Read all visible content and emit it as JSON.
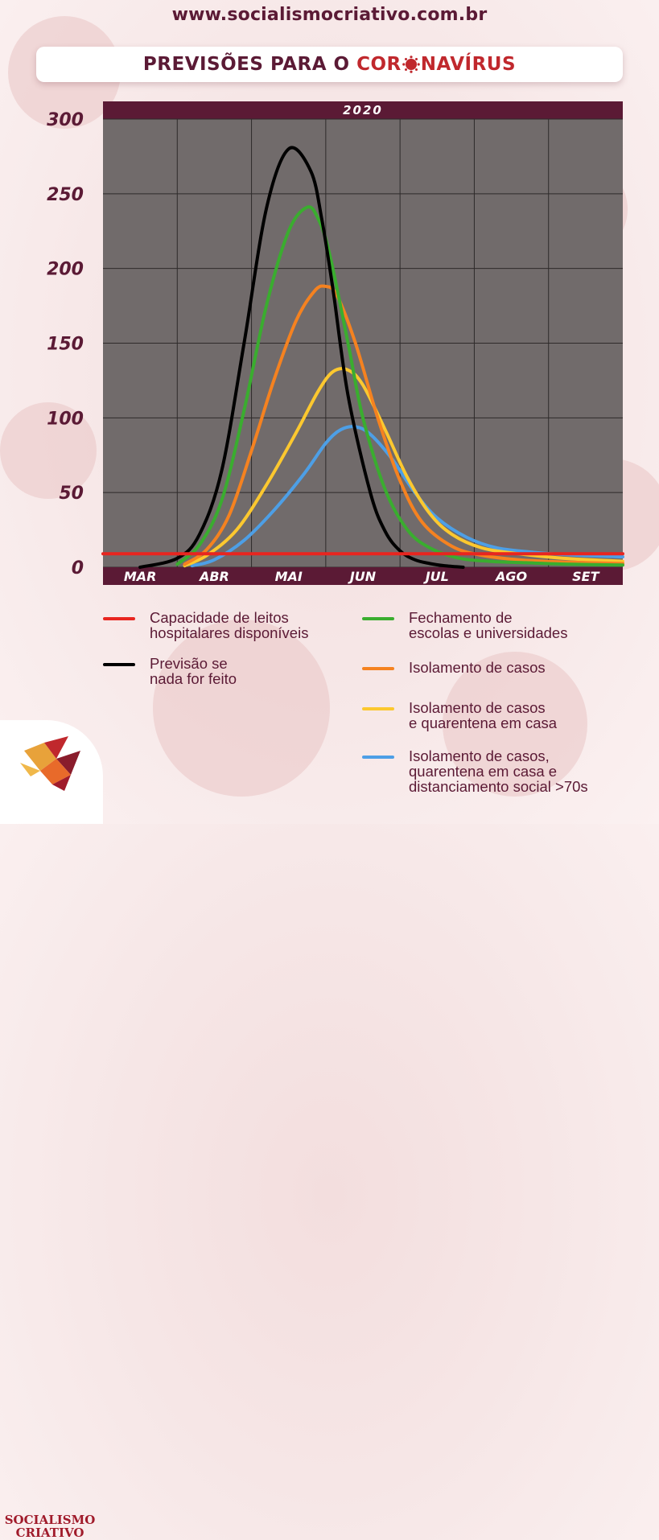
{
  "header": {
    "site_url": "www.socialismocriativo.com.br",
    "title_part1": "PREVISÕES PARA O ",
    "title_part2_a": "COR",
    "title_part2_b": "NAVÍRUS"
  },
  "chart_data": {
    "type": "line",
    "title": "PREVISÕES PARA O CORONAVÍRUS",
    "year_label": "2020",
    "categories": [
      "MAR",
      "ABR",
      "MAI",
      "JUN",
      "JUL",
      "AGO",
      "SET"
    ],
    "y_ticks": [
      0,
      50,
      100,
      150,
      200,
      250,
      300
    ],
    "ylim": [
      0,
      300
    ],
    "xlim": [
      0,
      7
    ],
    "grid": true,
    "series": [
      {
        "name": "Capacidade de leitos hospitalares disponíveis",
        "color": "#e8251f",
        "x": [
          0,
          7
        ],
        "y": [
          9,
          9
        ]
      },
      {
        "name": "Previsão se nada for feito",
        "color": "#000000",
        "x": [
          0.5,
          1.0,
          1.3,
          1.6,
          1.9,
          2.2,
          2.5,
          2.8,
          2.95,
          3.1,
          3.3,
          3.6,
          3.8,
          4.0,
          4.2,
          4.4,
          4.6,
          4.85
        ],
        "y": [
          0,
          6,
          22,
          65,
          150,
          240,
          280,
          265,
          232,
          185,
          115,
          50,
          24,
          11,
          5,
          2.5,
          1,
          0
        ]
      },
      {
        "name": "Fechamento de escolas e universidades",
        "color": "#3aad2f",
        "x": [
          1.0,
          1.3,
          1.6,
          1.9,
          2.2,
          2.5,
          2.75,
          2.9,
          3.05,
          3.3,
          3.5,
          3.8,
          4.1,
          4.4,
          4.8,
          5.2,
          5.7,
          6.3,
          7.0
        ],
        "y": [
          2,
          15,
          45,
          105,
          175,
          225,
          241,
          233,
          210,
          150,
          100,
          52,
          25,
          13,
          6,
          4,
          3,
          2,
          1.5
        ]
      },
      {
        "name": "Isolamento de casos",
        "color": "#f58220",
        "x": [
          1.1,
          1.4,
          1.7,
          2.0,
          2.3,
          2.6,
          2.85,
          3.0,
          3.15,
          3.4,
          3.7,
          4.0,
          4.3,
          4.7,
          5.1,
          5.6,
          6.2,
          7.0
        ],
        "y": [
          2,
          12,
          35,
          78,
          125,
          165,
          185,
          188,
          182,
          150,
          100,
          58,
          30,
          14,
          8,
          5,
          3.5,
          2.5
        ]
      },
      {
        "name": "Isolamento de casos e quarentena em casa",
        "color": "#fcc82f",
        "x": [
          1.1,
          1.4,
          1.8,
          2.2,
          2.6,
          2.9,
          3.1,
          3.3,
          3.5,
          3.8,
          4.1,
          4.4,
          4.7,
          5.1,
          5.6,
          6.2,
          7.0
        ],
        "y": [
          1,
          8,
          25,
          55,
          90,
          118,
          131,
          132,
          122,
          92,
          60,
          36,
          22,
          13,
          9,
          6,
          4
        ]
      },
      {
        "name": "Isolamento de casos, quarentena em casa e distanciamento social >70s",
        "color": "#4d9fe6",
        "x": [
          1.2,
          1.5,
          1.9,
          2.3,
          2.7,
          3.0,
          3.2,
          3.4,
          3.6,
          3.9,
          4.2,
          4.5,
          4.9,
          5.3,
          5.8,
          6.4,
          7.0
        ],
        "y": [
          1,
          5,
          18,
          38,
          62,
          83,
          92,
          94,
          89,
          72,
          50,
          33,
          20,
          13,
          10,
          8,
          7
        ]
      }
    ]
  },
  "legend": {
    "items": [
      {
        "label": "Capacidade de leitos\nhospitalares disponíveis",
        "color": "#e8251f"
      },
      {
        "label": "Previsão se\nnada for feito",
        "color": "#000000"
      },
      {
        "label": "Fechamento de\nescolas e universidades",
        "color": "#3aad2f"
      },
      {
        "label": "Isolamento de casos",
        "color": "#f58220"
      },
      {
        "label": "Isolamento de casos\ne quarentena em casa",
        "color": "#fcc82f"
      },
      {
        "label": "Isolamento de casos,\nquarentena em casa e\ndistanciamento social >70s",
        "color": "#4d9fe6"
      }
    ]
  },
  "brand": {
    "line1": "SOCIALISMO",
    "line2": "CRIATIVO"
  }
}
